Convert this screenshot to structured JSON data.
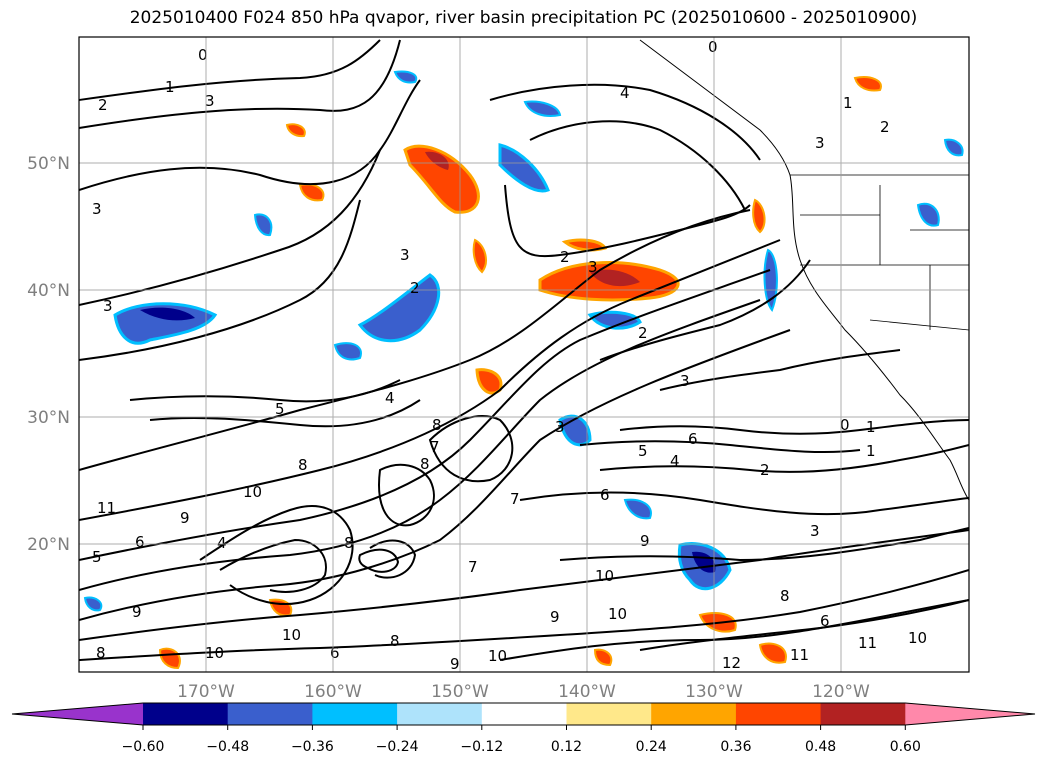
{
  "title": "2025010400 F024 850 hPa qvapor, river basin precipitation PC (2025010600 - 2025010900)",
  "map": {
    "lat_labels": [
      "50°N",
      "40°N",
      "30°N",
      "20°N"
    ],
    "lon_labels": [
      "170°W",
      "160°W",
      "150°W",
      "140°W",
      "130°W",
      "120°W"
    ],
    "contour_labels": [
      "0",
      "1",
      "2",
      "3",
      "4",
      "5",
      "6",
      "7",
      "8",
      "9",
      "10",
      "11",
      "12"
    ]
  },
  "colorbar": {
    "ticks": [
      "−0.60",
      "−0.48",
      "−0.36",
      "−0.24",
      "−0.12",
      "0.12",
      "0.24",
      "0.36",
      "0.48",
      "0.60"
    ],
    "colors": [
      "#9933cc",
      "#00008b",
      "#3a5fcd",
      "#00bfff",
      "#aee3fb",
      "#ffffff",
      "#ffe88a",
      "#ffa500",
      "#ff4500",
      "#b22222",
      "#ff88aa"
    ]
  }
}
